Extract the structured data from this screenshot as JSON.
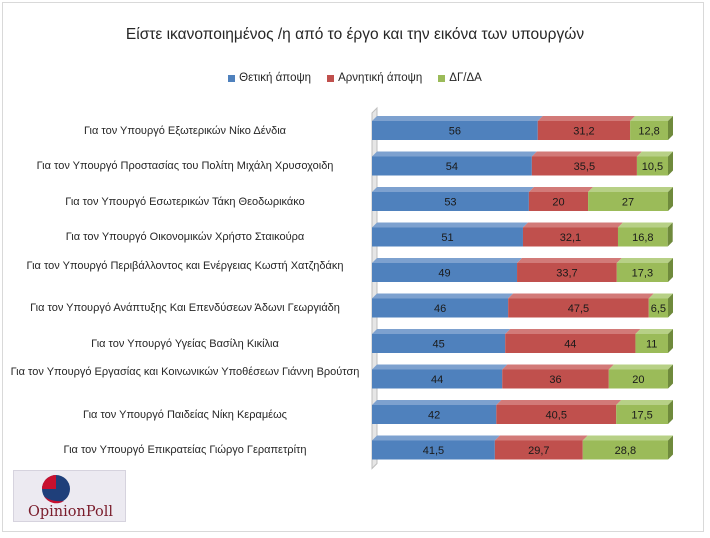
{
  "chart_data": {
    "type": "bar",
    "stacked": true,
    "orientation": "horizontal",
    "title": "Είστε ικανοποιημένος /η από το έργο και την εικόνα των υπουργών",
    "legend_position": "top",
    "categories": [
      "Για τον Υπουργό Εξωτερικών Νίκο Δένδια",
      "Για τον Υπουργό Προστασίας του Πολίτη Μιχάλη Χρυσοχοιδη",
      "Για τον Υπουργό Εσωτερικών Τάκη Θεοδωρικάκο",
      "Για τον Υπουργό Οικονομικών Χρήστο Σταικούρα",
      "Για τον Υπουργό  Περιβάλλοντος και Ενέργειας Κωστή Χατζηδάκη",
      "Για τον Υπουργό Ανάπτυξης Και Επενδύσεων Άδωνι Γεωργιάδη",
      "Για τον Υπουργό Υγείας Βασίλη Κικίλια",
      "Για τον Υπουργό Εργασίας και Κοινωνικών Υποθέσεων Γιάννη Βρούτση",
      "Για τον Υπουργό Παιδείας Νίκη Κεραμέως",
      "Για τον Υπουργό Επικρατείας Γιώργο Γεραπετρίτη"
    ],
    "series": [
      {
        "name": "Θετική άποψη",
        "color": "#4f81bd",
        "values": [
          56,
          54,
          53,
          51,
          49,
          46,
          45,
          44,
          42,
          41.5
        ],
        "labels": [
          "56",
          "54",
          "53",
          "51",
          "49",
          "46",
          "45",
          "44",
          "42",
          "41,5"
        ]
      },
      {
        "name": "Αρνητική άποψη",
        "color": "#c0504d",
        "values": [
          31.2,
          35.5,
          20,
          32.1,
          33.7,
          47.5,
          44,
          36,
          40.5,
          29.7
        ],
        "labels": [
          "31,2",
          "35,5",
          "20",
          "32,1",
          "33,7",
          "47,5",
          "44",
          "36",
          "40,5",
          "29,7"
        ]
      },
      {
        "name": "ΔΓ/ΔΑ",
        "color": "#9bbb59",
        "values": [
          12.8,
          10.5,
          27,
          16.8,
          17.3,
          6.5,
          11,
          20,
          17.5,
          28.8
        ],
        "labels": [
          "12,8",
          "10,5",
          "27",
          "16,8",
          "17,3",
          "6,5",
          "11",
          "20",
          "17,5",
          "28,8"
        ]
      }
    ],
    "xlim": [
      0,
      100
    ]
  },
  "logo": {
    "text": "OpinionPoll"
  }
}
